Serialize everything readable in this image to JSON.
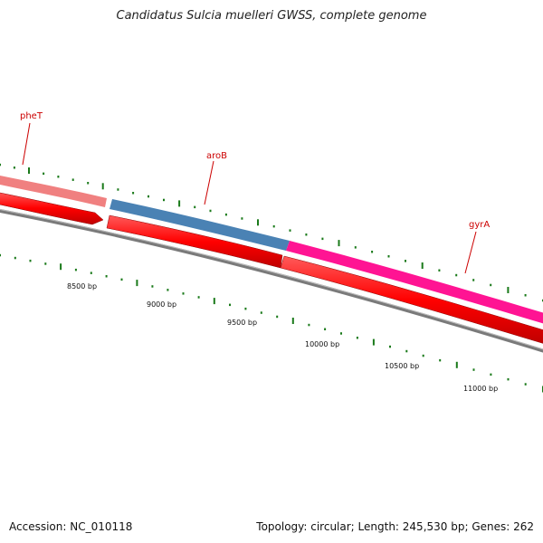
{
  "title": "Candidatus Sulcia muelleri GWSS, complete genome",
  "footer": {
    "accession": "Accession: NC_010118",
    "summary": "Topology: circular; Length: 245,530 bp; Genes: 262"
  },
  "genes": [
    {
      "name": "pheT",
      "strand": "+",
      "color": "#f08080"
    },
    {
      "name": "aroB",
      "strand": "+",
      "color": "#4a82b4"
    },
    {
      "name": "gyrA",
      "strand": "+",
      "color": "#ff1493"
    }
  ],
  "bp_ticks": [
    {
      "label": "8500 bp"
    },
    {
      "label": "9000 bp"
    },
    {
      "label": "9500 bp"
    },
    {
      "label": "10000 bp"
    },
    {
      "label": "10500 bp"
    },
    {
      "label": "11000 bp"
    }
  ],
  "colors": {
    "cds": "#ff0000",
    "backbone": "#808080",
    "tick": "#1a7a1a",
    "gene_label": "#cc0000"
  }
}
